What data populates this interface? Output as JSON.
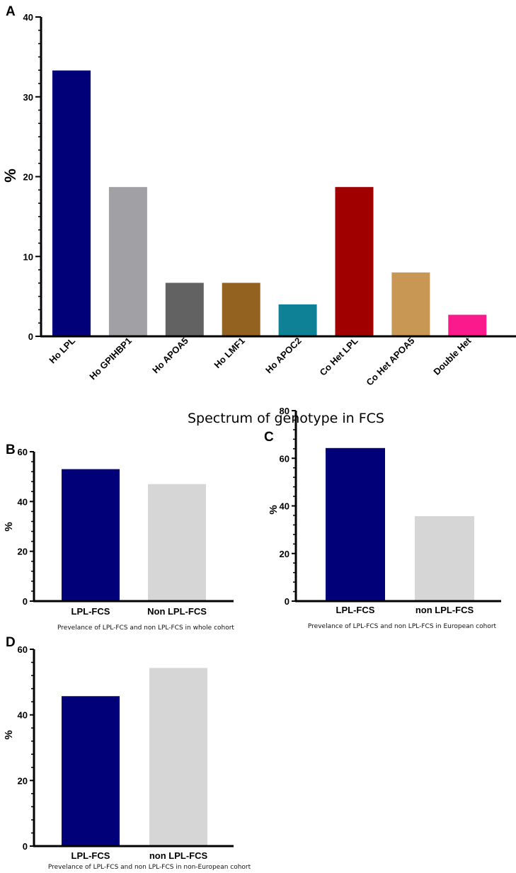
{
  "chart_data": [
    {
      "panel": "A",
      "type": "bar",
      "title": "",
      "xlabel": "Spectrum of genotype in FCS",
      "ylabel": "%",
      "ylim": [
        0,
        40
      ],
      "yticks": [
        0,
        10,
        20,
        30,
        40
      ],
      "categories": [
        "Ho LPL",
        "Ho GPIHBP1",
        "Ho APOA5",
        "Ho LMF1",
        "Ho APOC2",
        "Co Het LPL",
        "Co Het APOA5",
        "Double Het"
      ],
      "values": [
        33.3,
        18.7,
        6.7,
        6.7,
        4.0,
        18.7,
        8.0,
        2.7
      ],
      "colors": [
        "#020079",
        "#a1a1a5",
        "#626262",
        "#936221",
        "#0e8197",
        "#a10000",
        "#c99754",
        "#fa1a8b"
      ]
    },
    {
      "panel": "B",
      "type": "bar",
      "caption": "Prevelance of LPL-FCS and non LPL-FCS in whole cohort",
      "ylabel": "%",
      "ylim": [
        0,
        60
      ],
      "yticks": [
        0,
        20,
        40,
        60
      ],
      "categories": [
        "LPL-FCS",
        "Non LPL-FCS"
      ],
      "values": [
        53,
        47
      ],
      "colors": [
        "#020079",
        "#d6d6d6"
      ]
    },
    {
      "panel": "C",
      "type": "bar",
      "caption": "Prevelance of LPL-FCS and non LPL-FCS in European cohort",
      "ylabel": "%",
      "ylim": [
        0,
        80
      ],
      "yticks": [
        0,
        20,
        40,
        60,
        80
      ],
      "categories": [
        "LPL-FCS",
        "non LPL-FCS"
      ],
      "values": [
        64.3,
        35.7
      ],
      "colors": [
        "#020079",
        "#d6d6d6"
      ]
    },
    {
      "panel": "D",
      "type": "bar",
      "caption": "Prevelance of LPL-FCS and non LPL-FCS in non-European cohort",
      "ylabel": "%",
      "ylim": [
        0,
        60
      ],
      "yticks": [
        0,
        20,
        40,
        60
      ],
      "categories": [
        "LPL-FCS",
        "non LPL-FCS"
      ],
      "values": [
        45.7,
        54.3
      ],
      "colors": [
        "#020079",
        "#d6d6d6"
      ]
    }
  ]
}
